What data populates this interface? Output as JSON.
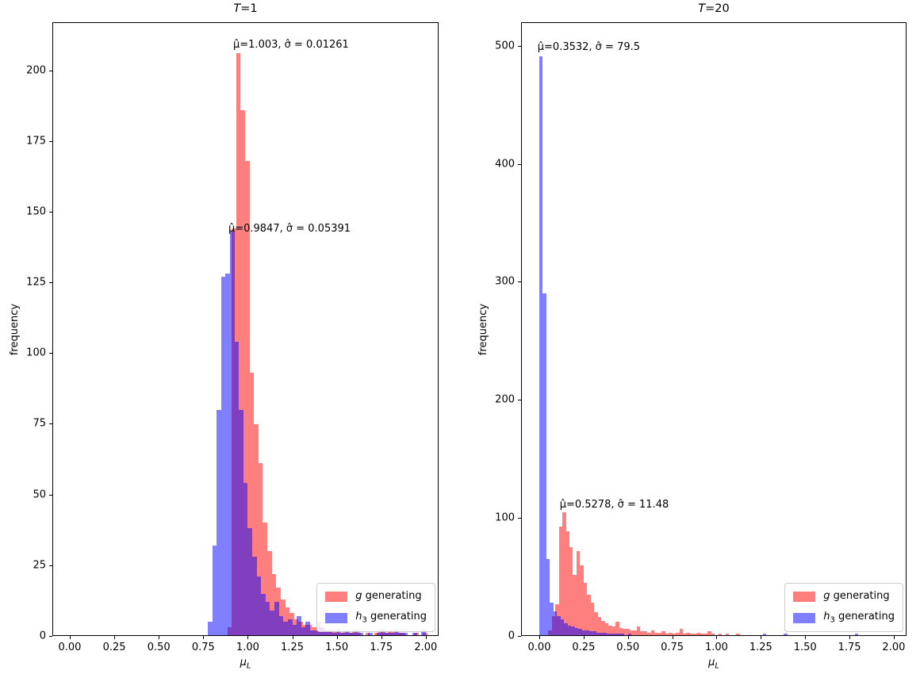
{
  "colors": {
    "g": "rgba(255,0,0,0.5)",
    "h3": "rgba(0,0,255,0.5)"
  },
  "chart_data": [
    {
      "type": "histogram",
      "title": "T=1",
      "title_var": "T",
      "title_rest": "=1",
      "xlabel": "mu_L",
      "xlabel_var": "μ",
      "xlabel_sub": "L",
      "ylabel": "frequency",
      "xlim": [
        -0.098,
        2.072
      ],
      "ylim": [
        0,
        217
      ],
      "grid": false,
      "legend_position": "lower right",
      "xtick_values": [
        0,
        0.25,
        0.5,
        0.75,
        1.0,
        1.25,
        1.5,
        1.75,
        2.0
      ],
      "xtick_labels": [
        "0.00",
        "0.25",
        "0.50",
        "0.75",
        "1.00",
        "1.25",
        "1.50",
        "1.75",
        "2.00"
      ],
      "ytick_values": [
        0,
        25,
        50,
        75,
        100,
        125,
        150,
        175,
        200
      ],
      "ytick_labels": [
        "0",
        "25",
        "50",
        "75",
        "100",
        "125",
        "150",
        "175",
        "200"
      ],
      "annotations": [
        {
          "text": "μ̂=1.003, σ̂ = 0.01261",
          "x": 0.918,
          "y": 207
        },
        {
          "text": "μ̂=0.9847, σ̂ = 0.05391",
          "x": 0.891,
          "y": 142
        }
      ],
      "series": [
        {
          "name": "g generating",
          "label_var": "g",
          "label_sub": "",
          "label_rest": " generating",
          "color": "g",
          "x0": 0.885,
          "bin_width": 0.025,
          "heights": [
            3,
            144,
            206,
            186,
            168,
            93,
            75,
            61,
            40,
            30,
            22,
            17,
            13,
            10,
            8,
            6,
            5,
            4,
            4,
            3,
            5,
            3,
            2,
            2,
            2,
            1,
            2,
            1,
            2,
            1,
            0,
            1,
            0,
            1,
            2,
            1,
            2,
            2,
            1,
            1,
            0,
            0,
            1,
            0,
            1
          ]
        },
        {
          "name": "h3 generating",
          "label_var": "h",
          "label_sub": "3",
          "label_rest": " generating",
          "color": "h3",
          "x0": 0.775,
          "bin_width": 0.025,
          "heights": [
            5,
            32,
            80,
            127,
            128,
            143,
            104,
            80,
            54,
            38,
            28,
            21,
            15,
            12,
            9,
            12,
            7,
            5,
            6,
            4,
            7,
            3,
            5,
            2,
            2,
            3,
            2,
            2,
            1,
            2,
            1,
            2,
            1,
            2,
            1,
            0,
            1,
            0,
            1,
            2,
            1,
            1,
            2,
            1,
            1,
            0,
            1,
            0,
            2
          ]
        }
      ]
    },
    {
      "type": "histogram",
      "title": "T=20",
      "title_var": "T",
      "title_rest": "=20",
      "xlabel": "mu_L",
      "xlabel_var": "μ",
      "xlabel_sub": "L",
      "ylabel": "frequency",
      "xlim": [
        -0.103,
        2.072
      ],
      "ylim": [
        0,
        520
      ],
      "grid": false,
      "legend_position": "lower right",
      "xtick_values": [
        0,
        0.25,
        0.5,
        0.75,
        1.0,
        1.25,
        1.5,
        1.75,
        2.0
      ],
      "xtick_labels": [
        "0.00",
        "0.25",
        "0.50",
        "0.75",
        "1.00",
        "1.25",
        "1.50",
        "1.75",
        "2.00"
      ],
      "ytick_values": [
        0,
        100,
        200,
        300,
        400,
        500
      ],
      "ytick_labels": [
        "0",
        "100",
        "200",
        "300",
        "400",
        "500"
      ],
      "annotations": [
        {
          "text": "μ̂=0.3532, σ̂ = 79.5",
          "x": -0.01,
          "y": 494
        },
        {
          "text": "μ̂=0.5278, σ̂ = 11.48",
          "x": 0.115,
          "y": 106
        }
      ],
      "series": [
        {
          "name": "g generating",
          "label_var": "g",
          "label_sub": "",
          "label_rest": " generating",
          "color": "g",
          "x0": 0.05,
          "bin_width": 0.02,
          "heights": [
            5,
            17,
            27,
            93,
            105,
            89,
            75,
            52,
            72,
            60,
            45,
            35,
            28,
            20,
            16,
            13,
            11,
            9,
            8,
            12,
            7,
            6,
            6,
            5,
            5,
            8,
            4,
            4,
            3,
            5,
            3,
            3,
            4,
            2,
            3,
            2,
            3,
            6,
            2,
            3,
            2,
            2,
            3,
            2,
            2,
            4,
            2,
            1,
            2,
            1,
            2,
            1,
            1,
            2,
            1,
            1,
            1,
            1,
            1,
            0,
            1,
            0,
            1,
            1,
            0,
            1,
            0,
            1,
            0,
            1,
            0,
            1,
            0,
            1,
            0,
            1,
            1,
            0,
            1,
            0,
            1,
            0,
            1,
            0,
            1,
            0,
            1,
            0,
            1,
            0,
            1,
            0,
            0,
            1,
            0,
            0,
            1
          ]
        },
        {
          "name": "h3 generating",
          "label_var": "h",
          "label_sub": "3",
          "label_rest": " generating",
          "color": "h3",
          "x0": 0.0,
          "bin_width": 0.02,
          "heights": [
            491,
            290,
            65,
            28,
            21,
            17,
            14,
            11,
            9,
            8,
            7,
            6,
            5,
            5,
            4,
            4,
            3,
            3,
            3,
            2,
            2,
            2,
            2,
            2,
            1,
            2,
            1,
            1,
            1,
            1,
            1,
            1,
            1,
            0,
            1,
            0,
            1,
            0,
            0,
            1,
            1,
            0,
            0,
            1,
            0,
            0,
            1,
            0,
            0,
            0,
            1,
            0,
            0,
            1,
            0,
            0,
            0,
            1,
            0,
            0,
            0,
            1,
            0,
            2,
            1,
            0,
            0,
            0,
            0,
            2,
            0,
            0,
            0,
            0,
            0,
            0,
            0,
            0,
            0,
            0,
            0,
            0,
            0,
            0,
            0,
            0,
            0,
            0,
            0,
            2
          ]
        }
      ]
    }
  ]
}
